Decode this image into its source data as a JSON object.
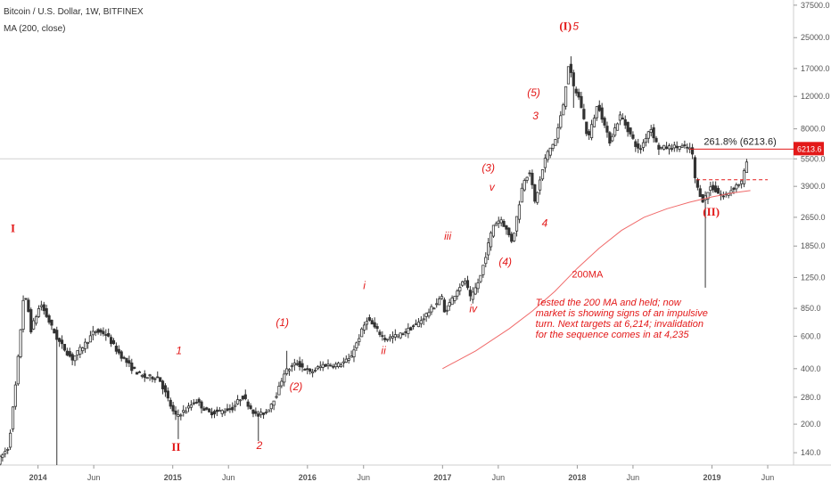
{
  "header": {
    "symbol_title": "Bitcoin / U.S. Dollar, 1W, BITFINEX",
    "indicator_label": "MA (200, close)"
  },
  "chart_data": {
    "type": "candlestick",
    "y_scale": "log",
    "ylim": [
      120,
      40000
    ],
    "y_ticks": [
      140,
      200,
      280,
      400,
      600,
      850,
      1250,
      1850,
      2650,
      3900,
      5500,
      8000,
      12000,
      17000,
      25000,
      37500
    ],
    "y_tick_labels": [
      "140.0",
      "200.0",
      "280.0",
      "400.0",
      "600.0",
      "850.0",
      "1250.0",
      "1850.0",
      "2650.0",
      "3900.0",
      "5500.0",
      "8000.0",
      "12000.0",
      "17000.0",
      "25000.0",
      "37500.0"
    ],
    "xlim": [
      "2013-09-20",
      "2019-08-10"
    ],
    "x_ticks": [
      "2014-01-01",
      "2014-06-01",
      "2015-01-01",
      "2015-06-01",
      "2016-01-01",
      "2016-06-01",
      "2017-01-01",
      "2017-06-01",
      "2018-01-01",
      "2018-06-01",
      "2019-01-01",
      "2019-06-01"
    ],
    "x_tick_labels": [
      "2014",
      "Jun",
      "2015",
      "Jun",
      "2016",
      "Jun",
      "2017",
      "Jun",
      "2018",
      "Jun",
      "2019",
      "Jun"
    ],
    "price_path": [
      [
        "2013-09-20",
        125
      ],
      [
        "2013-10-20",
        150
      ],
      [
        "2013-11-10",
        350
      ],
      [
        "2013-11-30",
        1000
      ],
      [
        "2013-12-10",
        900
      ],
      [
        "2013-12-20",
        650
      ],
      [
        "2014-01-15",
        900
      ],
      [
        "2014-02-10",
        700
      ],
      [
        "2014-03-01",
        580
      ],
      [
        "2014-04-10",
        450
      ],
      [
        "2014-05-20",
        560
      ],
      [
        "2014-06-10",
        640
      ],
      [
        "2014-07-10",
        620
      ],
      [
        "2014-08-10",
        500
      ],
      [
        "2014-09-20",
        400
      ],
      [
        "2014-10-20",
        360
      ],
      [
        "2014-12-01",
        360
      ],
      [
        "2015-01-14",
        220
      ],
      [
        "2015-02-15",
        240
      ],
      [
        "2015-03-10",
        270
      ],
      [
        "2015-04-15",
        230
      ],
      [
        "2015-05-20",
        235
      ],
      [
        "2015-06-20",
        245
      ],
      [
        "2015-07-15",
        285
      ],
      [
        "2015-08-24",
        220
      ],
      [
        "2015-09-20",
        235
      ],
      [
        "2015-10-20",
        300
      ],
      [
        "2015-11-05",
        380
      ],
      [
        "2015-12-10",
        430
      ],
      [
        "2016-01-15",
        380
      ],
      [
        "2016-02-20",
        420
      ],
      [
        "2016-04-01",
        420
      ],
      [
        "2016-05-01",
        450
      ],
      [
        "2016-06-18",
        750
      ],
      [
        "2016-07-10",
        660
      ],
      [
        "2016-08-05",
        580
      ],
      [
        "2016-09-15",
        610
      ],
      [
        "2016-11-01",
        700
      ],
      [
        "2016-12-20",
        890
      ],
      [
        "2017-01-05",
        1000
      ],
      [
        "2017-01-12",
        800
      ],
      [
        "2017-02-20",
        1100
      ],
      [
        "2017-03-10",
        1200
      ],
      [
        "2017-03-25",
        950
      ],
      [
        "2017-04-20",
        1250
      ],
      [
        "2017-05-25",
        2400
      ],
      [
        "2017-06-15",
        2600
      ],
      [
        "2017-07-16",
        1950
      ],
      [
        "2017-08-15",
        4200
      ],
      [
        "2017-09-01",
        4700
      ],
      [
        "2017-09-15",
        3200
      ],
      [
        "2017-10-15",
        5700
      ],
      [
        "2017-11-10",
        7000
      ],
      [
        "2017-11-30",
        10500
      ],
      [
        "2017-12-17",
        19000
      ],
      [
        "2017-12-25",
        14000
      ],
      [
        "2018-01-15",
        11500
      ],
      [
        "2018-02-06",
        7000
      ],
      [
        "2018-03-05",
        11000
      ],
      [
        "2018-04-05",
        6800
      ],
      [
        "2018-05-05",
        9500
      ],
      [
        "2018-06-25",
        6000
      ],
      [
        "2018-07-25",
        8200
      ],
      [
        "2018-08-15",
        6300
      ],
      [
        "2018-10-15",
        6400
      ],
      [
        "2018-11-14",
        6200
      ],
      [
        "2018-11-25",
        4000
      ],
      [
        "2018-12-15",
        3250
      ],
      [
        "2019-01-05",
        3900
      ],
      [
        "2019-02-07",
        3400
      ],
      [
        "2019-03-15",
        3950
      ],
      [
        "2019-04-01",
        4150
      ],
      [
        "2019-04-10",
        5300
      ]
    ],
    "wick_spikes": [
      {
        "date": "2014-02-24",
        "low": 120
      },
      {
        "date": "2015-01-14",
        "low": 166
      },
      {
        "date": "2015-08-24",
        "low": 162
      },
      {
        "date": "2015-11-04",
        "high": 500
      },
      {
        "date": "2016-06-18",
        "high": 780
      },
      {
        "date": "2017-12-17",
        "high": 19800
      },
      {
        "date": "2017-12-22",
        "low": 10400
      },
      {
        "date": "2018-12-15",
        "low": 1100
      }
    ],
    "ma_200": [
      [
        "2017-01-01",
        400
      ],
      [
        "2017-04-01",
        500
      ],
      [
        "2017-07-01",
        660
      ],
      [
        "2017-09-01",
        820
      ],
      [
        "2017-11-01",
        1050
      ],
      [
        "2018-01-01",
        1400
      ],
      [
        "2018-03-01",
        1800
      ],
      [
        "2018-05-01",
        2250
      ],
      [
        "2018-07-01",
        2650
      ],
      [
        "2018-09-01",
        2950
      ],
      [
        "2018-11-01",
        3200
      ],
      [
        "2019-01-01",
        3420
      ],
      [
        "2019-03-01",
        3600
      ],
      [
        "2019-04-15",
        3700
      ]
    ],
    "current_price": 5500,
    "price_badge": "6213.6",
    "target_level": 6213.6,
    "target_label": "261.8% (6213.6)",
    "invalidation_level": 4235,
    "ma_label": "200MA",
    "wave_labels": [
      {
        "text": "I",
        "date": "2013-10-25",
        "price": 2200,
        "style": "roman"
      },
      {
        "text": "II",
        "date": "2015-01-10",
        "price": 143,
        "style": "roman"
      },
      {
        "text": "1",
        "date": "2015-01-18",
        "price": 480,
        "style": "minor"
      },
      {
        "text": "2",
        "date": "2015-08-24",
        "price": 147,
        "style": "minor"
      },
      {
        "text": "(1)",
        "date": "2015-10-25",
        "price": 680,
        "style": "minor"
      },
      {
        "text": "(2)",
        "date": "2015-12-01",
        "price": 305,
        "style": "minor"
      },
      {
        "text": "i",
        "date": "2016-06-03",
        "price": 1080,
        "style": "minor"
      },
      {
        "text": "ii",
        "date": "2016-07-25",
        "price": 480,
        "style": "minor"
      },
      {
        "text": "iii",
        "date": "2017-01-15",
        "price": 2000,
        "style": "minor"
      },
      {
        "text": "iv",
        "date": "2017-03-25",
        "price": 810,
        "style": "minor"
      },
      {
        "text": "v",
        "date": "2017-05-15",
        "price": 3700,
        "style": "minor"
      },
      {
        "text": "(3)",
        "date": "2017-05-05",
        "price": 4700,
        "style": "minor"
      },
      {
        "text": "(4)",
        "date": "2017-06-20",
        "price": 1450,
        "style": "minor"
      },
      {
        "text": "3",
        "date": "2017-09-10",
        "price": 9000,
        "style": "minor"
      },
      {
        "text": "(5)",
        "date": "2017-09-05",
        "price": 12000,
        "style": "minor"
      },
      {
        "text": "4",
        "date": "2017-10-05",
        "price": 2350,
        "style": "minor"
      },
      {
        "text": "(I)",
        "date": "2017-11-30",
        "price": 27500,
        "style": "roman"
      },
      {
        "text": "5",
        "date": "2017-12-28",
        "price": 27500,
        "style": "minor"
      },
      {
        "text": "(II)",
        "date": "2018-12-30",
        "price": 2700,
        "style": "roman"
      }
    ],
    "annotation_lines": [
      "Tested the 200 MA and held; now",
      "market is showing signs of an impulsive",
      "turn. Next targets at 6,214; invalidation",
      "for the sequence comes in at 4,235"
    ]
  },
  "colors": {
    "up": "#333333",
    "down": "#333333",
    "accent_red": "#e31919",
    "ma_line": "#f06a6a",
    "axis_text": "#555555",
    "grid_line": "#d9d9d9"
  }
}
